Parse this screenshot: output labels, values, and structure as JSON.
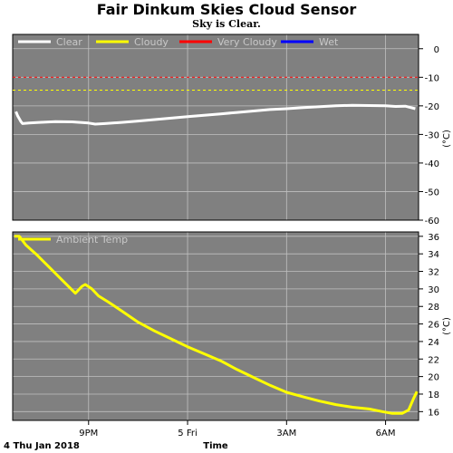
{
  "title": "Fair Dinkum Skies Cloud Sensor",
  "subtitle": "Sky is Clear.",
  "date_label": "4 Thu Jan 2018",
  "time_label": "Time",
  "colors": {
    "panel_bg": "#808080",
    "grid": "#c0c0c0",
    "clear": "#ffffff",
    "cloudy": "#ffff00",
    "very_cloudy": "#ff0000",
    "wet": "#0000ff",
    "ambient": "#ffff00"
  },
  "chart_data": [
    {
      "type": "line",
      "ylabel": "(°C)",
      "ylim": [
        -60,
        5
      ],
      "yticks": [
        "0",
        "-10",
        "-20",
        "-30",
        "-40",
        "-50",
        "-60"
      ],
      "xlabel": "Time",
      "x_tick_labels": [
        "9PM",
        "5 Fri",
        "3AM",
        "6AM"
      ],
      "x_tick_hours": [
        21,
        24,
        27,
        30
      ],
      "xlim_hours": [
        18.7,
        31.0
      ],
      "grid": true,
      "legend_position": "top-left",
      "legend": [
        "Clear",
        "Cloudy",
        "Very Cloudy",
        "Wet"
      ],
      "thresholds": [
        {
          "name": "Very Cloudy",
          "value": -10
        },
        {
          "name": "Cloudy",
          "value": -14.5
        }
      ],
      "series": [
        {
          "name": "Clear",
          "x": [
            18.8,
            18.85,
            18.95,
            19.0,
            19.2,
            19.5,
            20.0,
            20.5,
            21.0,
            21.2,
            21.5,
            22.0,
            22.5,
            23.0,
            23.5,
            24.0,
            24.5,
            25.0,
            25.5,
            26.0,
            26.5,
            27.0,
            27.5,
            28.0,
            28.5,
            29.0,
            29.5,
            30.0,
            30.3,
            30.6,
            30.9
          ],
          "values": [
            -22.0,
            -23.5,
            -25.5,
            -26.2,
            -26.0,
            -25.8,
            -25.5,
            -25.6,
            -26.0,
            -26.4,
            -26.2,
            -25.8,
            -25.3,
            -24.8,
            -24.3,
            -23.8,
            -23.3,
            -22.8,
            -22.3,
            -21.8,
            -21.3,
            -21.0,
            -20.6,
            -20.3,
            -20.0,
            -19.8,
            -19.9,
            -20.0,
            -20.2,
            -20.1,
            -21.0
          ]
        }
      ]
    },
    {
      "type": "line",
      "ylabel": "(°C)",
      "ylim": [
        15,
        36.5
      ],
      "yticks": [
        "36",
        "34",
        "32",
        "30",
        "28",
        "26",
        "24",
        "22",
        "20",
        "18",
        "16"
      ],
      "xlabel": "Time",
      "x_tick_labels": [
        "9PM",
        "5 Fri",
        "3AM",
        "6AM"
      ],
      "x_tick_hours": [
        21,
        24,
        27,
        30
      ],
      "xlim_hours": [
        18.7,
        31.0
      ],
      "grid": true,
      "legend_position": "top-left",
      "legend": [
        "Ambient Temp"
      ],
      "series": [
        {
          "name": "Ambient Temp",
          "x": [
            18.75,
            18.9,
            19.1,
            19.4,
            19.8,
            20.2,
            20.6,
            20.8,
            20.9,
            21.1,
            21.3,
            21.6,
            22.0,
            22.5,
            23.0,
            23.5,
            24.0,
            24.5,
            25.0,
            25.5,
            26.0,
            26.5,
            27.0,
            27.5,
            28.0,
            28.5,
            29.0,
            29.5,
            29.9,
            30.2,
            30.5,
            30.7,
            30.85,
            30.95
          ],
          "values": [
            36.0,
            36.0,
            35.0,
            34.0,
            32.5,
            31.0,
            29.5,
            30.3,
            30.5,
            30.0,
            29.2,
            28.5,
            27.5,
            26.2,
            25.2,
            24.3,
            23.4,
            22.6,
            21.8,
            20.8,
            19.9,
            19.0,
            18.2,
            17.7,
            17.2,
            16.8,
            16.5,
            16.3,
            16.0,
            15.8,
            15.8,
            16.2,
            17.5,
            18.3
          ]
        }
      ]
    }
  ]
}
